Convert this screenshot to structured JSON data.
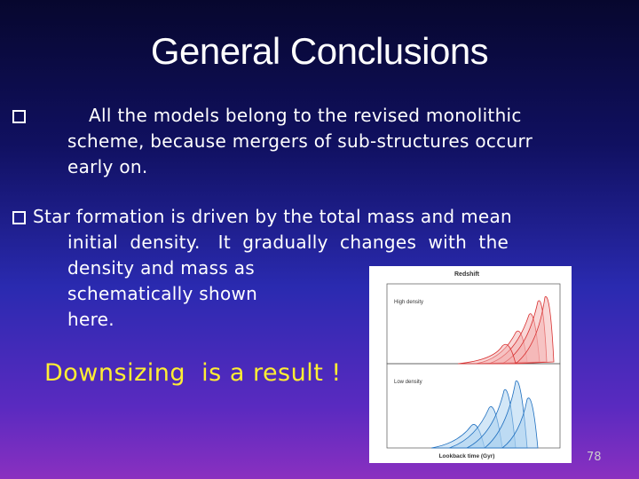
{
  "slide": {
    "title": "General Conclusions",
    "bullets": [
      {
        "lines": [
          "All the models belong to the revised monolithic",
          "scheme, because mergers of sub-structures occurr",
          "early on."
        ]
      },
      {
        "lines": [
          "Star formation is driven by the total mass and mean",
          "initial  density.   It  gradually  changes  with  the",
          "density and mass as",
          "schematically shown",
          "here."
        ]
      }
    ],
    "emphasis": "Downsizing  is a result !",
    "figure": {
      "top_axis_label": "Redshift",
      "bottom_axis_label": "Lookback time (Gyr)",
      "upper_panel_label": "High density",
      "lower_panel_label": "Low density"
    },
    "page_number": "78"
  }
}
